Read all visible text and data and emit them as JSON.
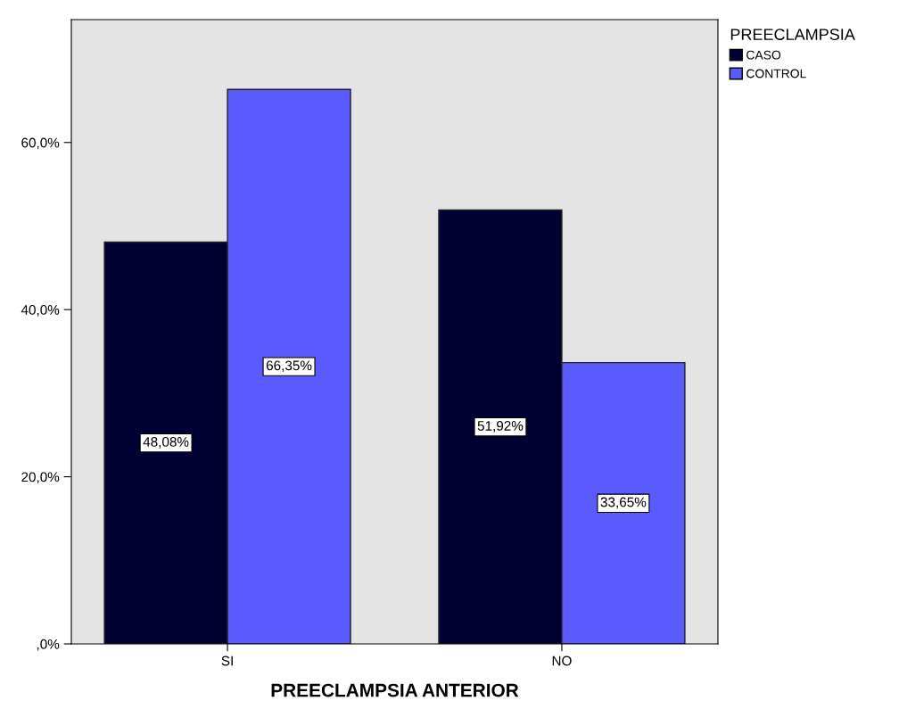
{
  "chart_data": {
    "type": "bar",
    "xlabel": "PREECLAMPSIA ANTERIOR",
    "legend_title": "PREECLAMPSIA",
    "legend": "top right",
    "categories": [
      "SI",
      "NO"
    ],
    "series": [
      {
        "name": "CASO",
        "color": "#000033",
        "values": [
          48.08,
          51.92
        ],
        "value_labels": [
          "48,08%",
          "51,92%"
        ]
      },
      {
        "name": "CONTROL",
        "color": "#5a5aff",
        "values": [
          66.35,
          33.65
        ],
        "value_labels": [
          "66,35%",
          "33,65%"
        ]
      }
    ],
    "ylim": [
      0,
      74.7
    ],
    "yticks": [
      {
        "value": 0,
        "label": ",0%"
      },
      {
        "value": 20,
        "label": "20,0%"
      },
      {
        "value": 40,
        "label": "40,0%"
      },
      {
        "value": 60,
        "label": "60,0%"
      }
    ],
    "grid": false
  }
}
